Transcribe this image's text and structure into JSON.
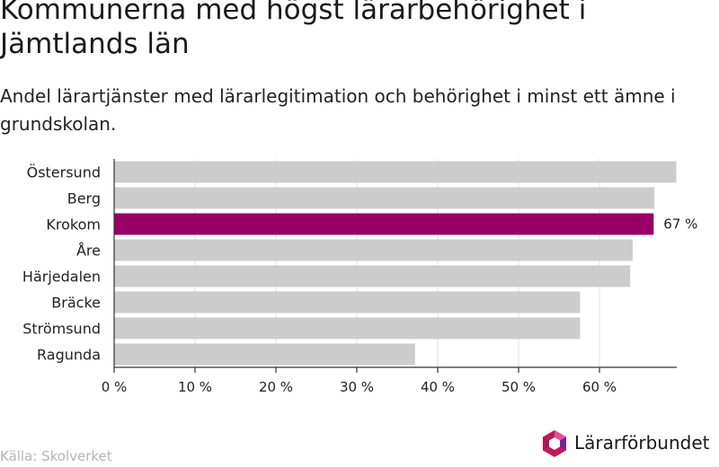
{
  "title": "Kommunerna med högst lärarbehörighet i Jämtlands län",
  "subtitle": "Andel lärartjänster med lärarlegitimation och behörighet i minst ett ämne i grundskolan.",
  "source": "Källa: Skolverket",
  "logo": {
    "name": "Lärarförbundet",
    "icon": "lararforbundet-logo-icon"
  },
  "colors": {
    "bar": "#cccccc",
    "highlight": "#990066",
    "grid": "#e0e0e0",
    "axis": "#333333"
  },
  "chart_data": {
    "type": "bar",
    "orientation": "horizontal",
    "categories": [
      "Östersund",
      "Berg",
      "Krokom",
      "Åre",
      "Härjedalen",
      "Bräcke",
      "Strömsund",
      "Ragunda"
    ],
    "values": [
      69.5,
      66.8,
      66.7,
      64.1,
      63.8,
      57.6,
      57.6,
      37.2
    ],
    "highlight_index": 2,
    "data_labels": [
      {
        "index": 2,
        "text": "67 %"
      }
    ],
    "xlim": [
      0,
      70
    ],
    "xticks": [
      0,
      10,
      20,
      30,
      40,
      50,
      60
    ],
    "xtick_labels": [
      "0 %",
      "10 %",
      "20 %",
      "30 %",
      "40 %",
      "50 %",
      "60 %"
    ],
    "xlabel": "",
    "ylabel": "",
    "grid": true,
    "legend": "none"
  }
}
